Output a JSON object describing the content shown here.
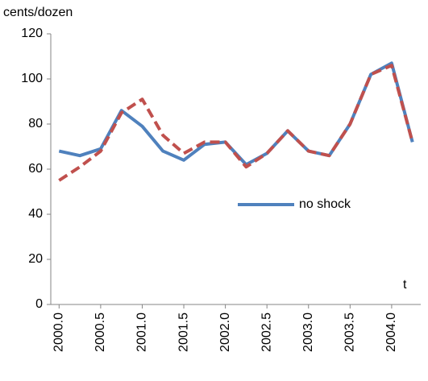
{
  "chart_data": {
    "type": "line",
    "y_label": "cents/dozen",
    "x_annotation": "t",
    "x": [
      2000.0,
      2000.25,
      2000.5,
      2000.75,
      2001.0,
      2001.25,
      2001.5,
      2001.75,
      2002.0,
      2002.25,
      2002.5,
      2002.75,
      2003.0,
      2003.25,
      2003.5,
      2003.75,
      2004.0,
      2004.25
    ],
    "series": [
      {
        "name": "no shock",
        "color": "#4f81bd",
        "dashed": false,
        "values": [
          68,
          66,
          69,
          86,
          79,
          68,
          64,
          71,
          72,
          62,
          67,
          77,
          68,
          66,
          80,
          102,
          107,
          72
        ]
      },
      {
        "color": "#c0504d",
        "dashed": true,
        "values": [
          55,
          61,
          68,
          85,
          91,
          75,
          67,
          72,
          72,
          61,
          67,
          77,
          68,
          66,
          80,
          102,
          106,
          72
        ]
      }
    ],
    "xlim": [
      1999.9,
      2004.35
    ],
    "xticks": [
      {
        "value": 2000.0,
        "label": "2000.0"
      },
      {
        "value": 2000.5,
        "label": "2000.5"
      },
      {
        "value": 2001.0,
        "label": "2001.0"
      },
      {
        "value": 2001.5,
        "label": "2001.5"
      },
      {
        "value": 2002.0,
        "label": "2002.0"
      },
      {
        "value": 2002.5,
        "label": "2002.5"
      },
      {
        "value": 2003.0,
        "label": "2003.0"
      },
      {
        "value": 2003.5,
        "label": "2003.5"
      },
      {
        "value": 2004.0,
        "label": "2004.0"
      }
    ],
    "ylim": [
      0,
      120
    ],
    "yticks": [
      0,
      20,
      40,
      60,
      80,
      100,
      120
    ],
    "grid": false
  }
}
